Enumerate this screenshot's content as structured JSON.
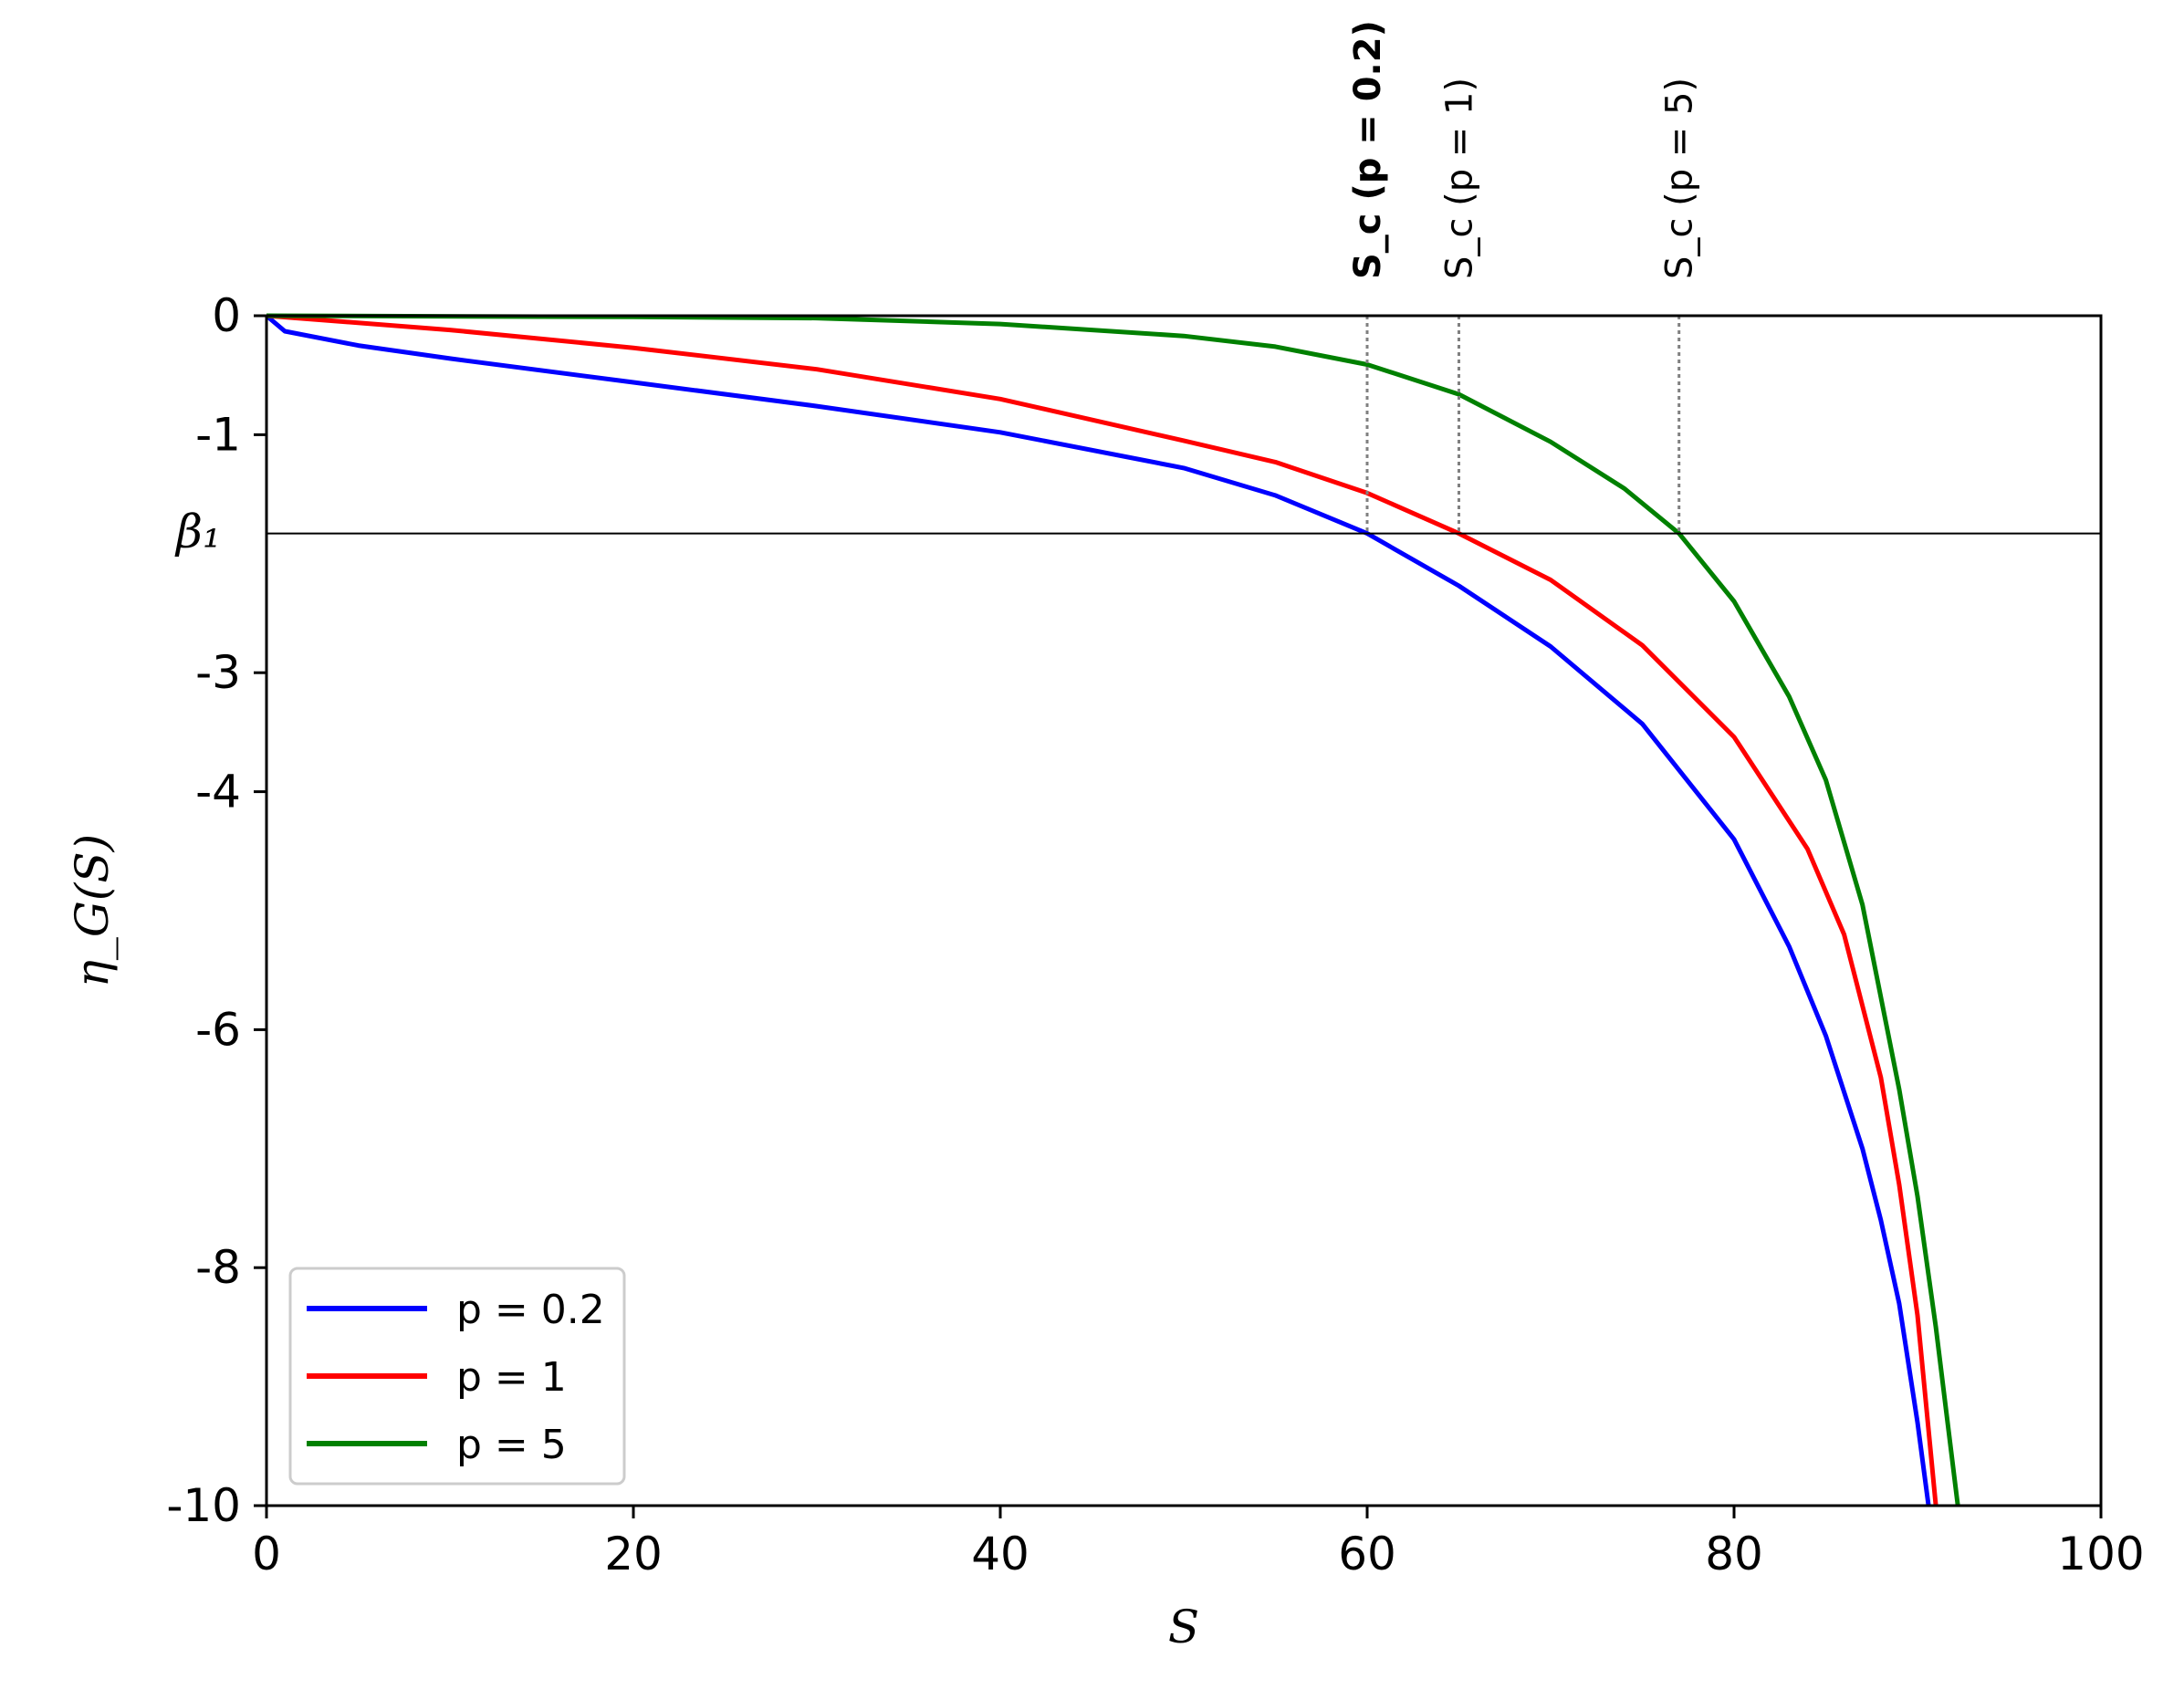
{
  "chart_data": {
    "type": "line",
    "xlabel": "S",
    "ylabel": "η_G(S)",
    "xlim": [
      0,
      100
    ],
    "ylim": [
      -10,
      0
    ],
    "x_ticks": [
      0,
      20,
      40,
      60,
      80,
      100
    ],
    "x_tick_labels": [
      "0",
      "20",
      "40",
      "60",
      "80",
      "100"
    ],
    "y_ticks": [
      0,
      -1,
      -3,
      -4,
      -6,
      -8,
      -10
    ],
    "y_tick_labels": [
      "0",
      "-1",
      "-3",
      "-4",
      "-6",
      "-8",
      "-10"
    ],
    "grid": false,
    "legend_position": "lower-left",
    "beta_line": {
      "label": "β₁",
      "y": -1.83,
      "color": "#000000"
    },
    "series": [
      {
        "name": "p = 0.2",
        "color": "#0000ff",
        "x": [
          0,
          1,
          5,
          10,
          20,
          30,
          40,
          50,
          55,
          60,
          65,
          70,
          75,
          80,
          83,
          85,
          87,
          88,
          89,
          90,
          90.6
        ],
        "y": [
          0,
          -0.13,
          -0.25,
          -0.36,
          -0.56,
          -0.76,
          -0.98,
          -1.28,
          -1.51,
          -1.83,
          -2.27,
          -2.78,
          -3.43,
          -4.4,
          -5.3,
          -6.05,
          -7.0,
          -7.6,
          -8.3,
          -9.3,
          -10.0
        ]
      },
      {
        "name": "p = 1",
        "color": "#ff0000",
        "x": [
          0,
          10,
          20,
          30,
          40,
          50,
          55,
          60,
          65,
          70,
          75,
          80,
          84,
          86,
          88,
          89,
          90,
          91
        ],
        "y": [
          0,
          -0.12,
          -0.27,
          -0.45,
          -0.7,
          -1.05,
          -1.23,
          -1.49,
          -1.83,
          -2.22,
          -2.77,
          -3.54,
          -4.48,
          -5.2,
          -6.4,
          -7.3,
          -8.4,
          -10.0
        ]
      },
      {
        "name": "p = 5",
        "color": "#008000",
        "x": [
          0,
          20,
          30,
          40,
          50,
          55,
          60,
          65,
          70,
          74,
          77,
          80,
          83,
          85,
          87,
          89,
          90,
          91,
          92.2
        ],
        "y": [
          0,
          -0.01,
          -0.02,
          -0.07,
          -0.17,
          -0.26,
          -0.41,
          -0.66,
          -1.06,
          -1.45,
          -1.83,
          -2.4,
          -3.2,
          -3.9,
          -4.95,
          -6.5,
          -7.4,
          -8.5,
          -10.0
        ]
      }
    ],
    "critical_lines": [
      {
        "label": "S_c (p = 0.2)",
        "x": 60.0,
        "bold": true
      },
      {
        "label": "S_c (p = 1)",
        "x": 65.0,
        "bold": false
      },
      {
        "label": "S_c (p = 5)",
        "x": 77.0,
        "bold": false
      }
    ]
  }
}
